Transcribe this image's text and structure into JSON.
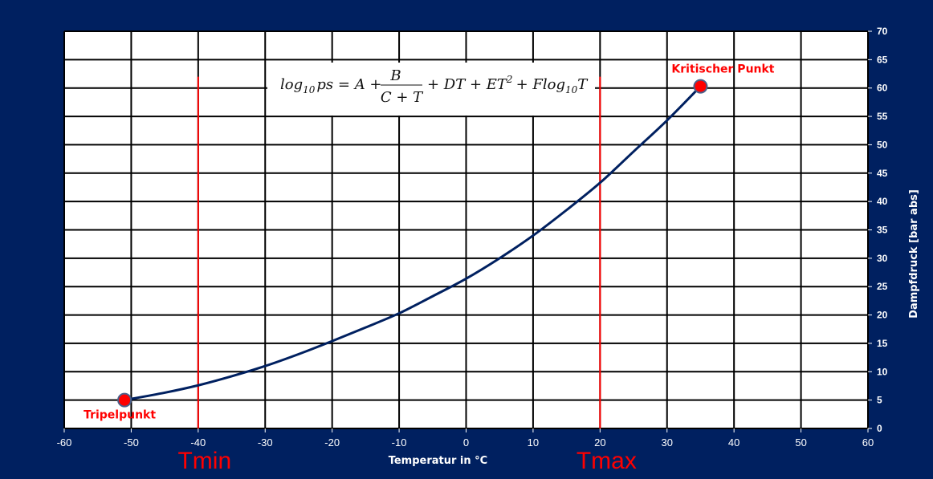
{
  "chart_data": {
    "type": "line",
    "xlabel": "Temperatur in °C",
    "ylabel": "Dampfdruck [bar abs]",
    "xlim": [
      -60,
      60
    ],
    "ylim": [
      0,
      70
    ],
    "x_ticks": [
      -60,
      -50,
      -40,
      -30,
      -20,
      -10,
      0,
      10,
      20,
      30,
      40,
      50,
      60
    ],
    "y_ticks": [
      0,
      5,
      10,
      15,
      20,
      25,
      30,
      35,
      40,
      45,
      50,
      55,
      60,
      65,
      70
    ],
    "grid": true,
    "y_axis_side": "right",
    "series": [
      {
        "color": "#002060",
        "x": [
          -51,
          -45,
          -40,
          -35,
          -30,
          -25,
          -20,
          -15,
          -10,
          -5,
          0,
          5,
          10,
          15,
          20,
          25,
          30,
          35
        ],
        "y": [
          5.0,
          6.3,
          7.6,
          9.2,
          11.0,
          13.1,
          15.4,
          17.8,
          20.3,
          23.3,
          26.4,
          30.0,
          34.0,
          38.5,
          43.3,
          48.8,
          54.3,
          60.3
        ]
      }
    ],
    "points": [
      {
        "label": "Tripelpunkt",
        "x": -51,
        "y": 5.0,
        "color": "#ff0000"
      },
      {
        "label": "Kritischer Punkt",
        "x": 35,
        "y": 60.3,
        "color": "#ff0000"
      }
    ],
    "limits": [
      {
        "label": "Tmin",
        "x": -40,
        "color": "#ff0000"
      },
      {
        "label": "Tmax",
        "x": 20,
        "color": "#ff0000"
      }
    ],
    "formula": {
      "lhs": "log",
      "lhs_sub": "10",
      "lhs_var": "ps = A +",
      "numerator": "B",
      "denominator": "C + T",
      "rest_a": "+ DT + ET",
      "rest_sup": "2",
      "rest_b": "+ Flog",
      "rest_sub": "10",
      "rest_c": "T"
    },
    "colors": {
      "background": "#002060",
      "plot_area": "#ffffff",
      "grid": "#000000",
      "curve": "#002060",
      "accent": "#ff0000"
    }
  }
}
